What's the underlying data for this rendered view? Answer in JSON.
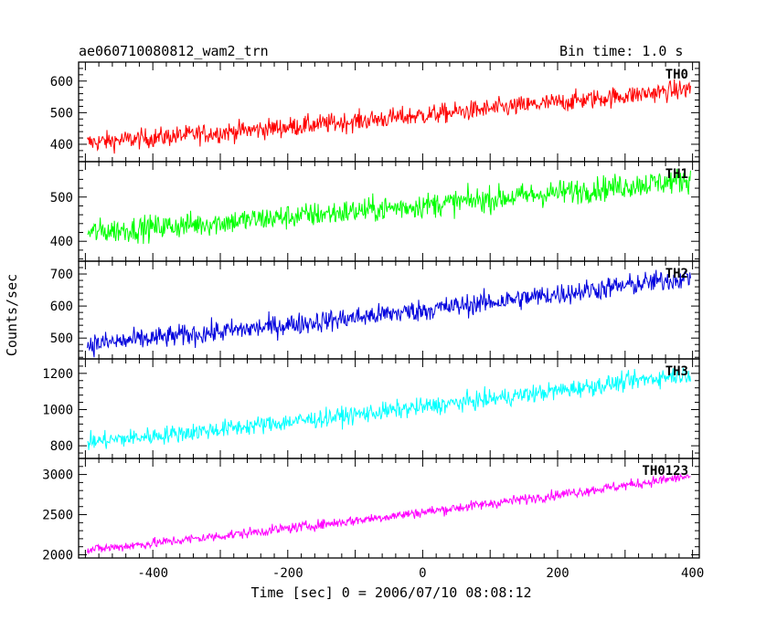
{
  "header": {
    "title": "ae060710080812_wam2_trn",
    "bin_time": "Bin time: 1.0 s"
  },
  "chart_data": {
    "type": "line",
    "xlabel": "Time [sec] 0 = 2006/07/10 08:08:12",
    "ylabel": "Counts/sec",
    "xlim": [
      -510,
      410
    ],
    "xticks": [
      -400,
      -200,
      0,
      200,
      400
    ],
    "bin_time_s": 1.0,
    "panels": [
      {
        "name": "TH0",
        "color": "#ff0000",
        "ylim": [
          345,
          660
        ],
        "yticks": [
          400,
          500,
          600
        ],
        "start": 405,
        "end": 575,
        "noise": 22
      },
      {
        "name": "TH1",
        "color": "#00ff00",
        "ylim": [
          355,
          580
        ],
        "yticks": [
          400,
          500
        ],
        "start": 420,
        "end": 540,
        "noise": 20
      },
      {
        "name": "TH2",
        "color": "#0000dd",
        "ylim": [
          435,
          740
        ],
        "yticks": [
          500,
          600,
          700
        ],
        "start": 480,
        "end": 690,
        "noise": 24
      },
      {
        "name": "TH3",
        "color": "#00ffff",
        "ylim": [
          730,
          1280
        ],
        "yticks": [
          800,
          1000,
          1200
        ],
        "start": 820,
        "end": 1200,
        "noise": 35
      },
      {
        "name": "TH0123",
        "color": "#ff00ff",
        "ylim": [
          1960,
          3200
        ],
        "yticks": [
          2000,
          2500,
          3000
        ],
        "start": 2060,
        "end": 2980,
        "noise": 45
      }
    ]
  }
}
